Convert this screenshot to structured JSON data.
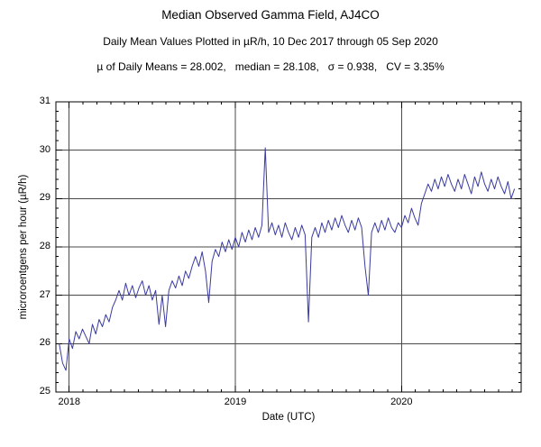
{
  "chart_data": {
    "type": "line",
    "title": "Median Observed Gamma Field, AJ4CO",
    "subtitle": "Daily Mean Values Plotted in µR/h, 10 Dec 2017 through 05 Sep 2020",
    "stats": "µ of Daily Means = 28.002,   median = 28.108,   σ = 0.938,   CV = 3.35%",
    "xlabel": "Date (UTC)",
    "ylabel": "microroentgens per hour (µR/h)",
    "xlim": [
      2017.92,
      2020.72
    ],
    "ylim": [
      25,
      31
    ],
    "x_ticks": [
      2018,
      2019,
      2020
    ],
    "y_ticks": [
      25,
      26,
      27,
      28,
      29,
      30,
      31
    ],
    "grid": true,
    "line_color": "#3a3aa0",
    "grid_color": "#4a4a4a",
    "background": "#ffffff",
    "x_unit": "decimal year (UTC)",
    "x_start": 2017.94,
    "x_step": 0.02,
    "y": [
      26.0,
      25.6,
      25.45,
      26.1,
      25.9,
      26.25,
      26.1,
      26.3,
      26.15,
      26.0,
      26.4,
      26.2,
      26.5,
      26.35,
      26.6,
      26.45,
      26.75,
      26.9,
      27.1,
      26.9,
      27.25,
      27.0,
      27.2,
      26.95,
      27.15,
      27.3,
      27.0,
      27.2,
      26.9,
      27.1,
      26.4,
      27.0,
      26.35,
      27.1,
      27.3,
      27.15,
      27.4,
      27.2,
      27.5,
      27.35,
      27.6,
      27.8,
      27.6,
      27.9,
      27.5,
      26.85,
      27.7,
      27.95,
      27.8,
      28.1,
      27.9,
      28.15,
      27.95,
      28.2,
      28.0,
      28.3,
      28.1,
      28.35,
      28.15,
      28.4,
      28.2,
      28.45,
      30.05,
      28.3,
      28.5,
      28.25,
      28.45,
      28.2,
      28.5,
      28.3,
      28.15,
      28.4,
      28.2,
      28.45,
      28.25,
      26.45,
      28.2,
      28.4,
      28.2,
      28.5,
      28.3,
      28.55,
      28.35,
      28.6,
      28.4,
      28.65,
      28.45,
      28.3,
      28.55,
      28.35,
      28.6,
      28.4,
      27.6,
      27.0,
      28.3,
      28.5,
      28.3,
      28.55,
      28.35,
      28.6,
      28.4,
      28.3,
      28.5,
      28.4,
      28.65,
      28.5,
      28.8,
      28.6,
      28.45,
      28.9,
      29.1,
      29.3,
      29.15,
      29.4,
      29.2,
      29.45,
      29.25,
      29.5,
      29.3,
      29.15,
      29.4,
      29.2,
      29.5,
      29.3,
      29.1,
      29.45,
      29.25,
      29.55,
      29.3,
      29.15,
      29.4,
      29.2,
      29.45,
      29.25,
      29.1,
      29.35,
      29.0,
      29.2
    ]
  }
}
